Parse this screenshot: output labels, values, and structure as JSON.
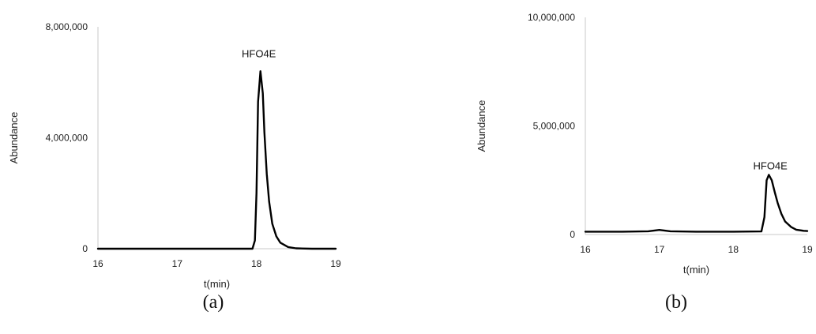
{
  "chart_data": [
    {
      "type": "line",
      "panel_label": "(a)",
      "xlabel": "t(min)",
      "ylabel": "Abundance",
      "xlim": [
        16,
        19
      ],
      "ylim": [
        0,
        8000000
      ],
      "x_ticks": [
        16,
        17,
        18,
        19
      ],
      "y_ticks": [
        0,
        4000000,
        8000000
      ],
      "y_tick_labels": [
        "0",
        "4,000,000",
        "8,000,000"
      ],
      "peak_label": "HFO4E",
      "peak_label_x": 18.03,
      "peak_label_y": 6900000,
      "color": "#000000",
      "grid": false,
      "series": [
        {
          "x": [
            16.0,
            17.0,
            17.95,
            17.98,
            18.0,
            18.02,
            18.05,
            18.08,
            18.1,
            18.13,
            18.16,
            18.2,
            18.25,
            18.3,
            18.4,
            18.5,
            18.7,
            19.0
          ],
          "y": [
            0,
            0,
            0,
            300000,
            2000000,
            5300000,
            6400000,
            5600000,
            4200000,
            2700000,
            1700000,
            900000,
            450000,
            220000,
            60000,
            15000,
            0,
            0
          ]
        }
      ]
    },
    {
      "type": "line",
      "panel_label": "(b)",
      "xlabel": "t(min)",
      "ylabel": "Abundance",
      "xlim": [
        16,
        19
      ],
      "ylim": [
        0,
        10000000
      ],
      "x_ticks": [
        16,
        17,
        18,
        19
      ],
      "y_ticks": [
        0,
        5000000,
        10000000
      ],
      "y_tick_labels": [
        "0",
        "5,000,000",
        "10,000,000"
      ],
      "peak_label": "HFO4E",
      "peak_label_x": 18.5,
      "peak_label_y": 3000000,
      "color": "#000000",
      "grid": false,
      "series": [
        {
          "x": [
            16.0,
            16.5,
            16.85,
            17.0,
            17.15,
            17.5,
            18.0,
            18.38,
            18.42,
            18.45,
            18.48,
            18.52,
            18.56,
            18.6,
            18.65,
            18.7,
            18.78,
            18.85,
            18.95,
            19.0
          ],
          "y": [
            130000,
            130000,
            150000,
            210000,
            150000,
            130000,
            130000,
            140000,
            800000,
            2500000,
            2750000,
            2500000,
            1950000,
            1450000,
            950000,
            600000,
            350000,
            220000,
            170000,
            160000
          ]
        }
      ]
    }
  ]
}
